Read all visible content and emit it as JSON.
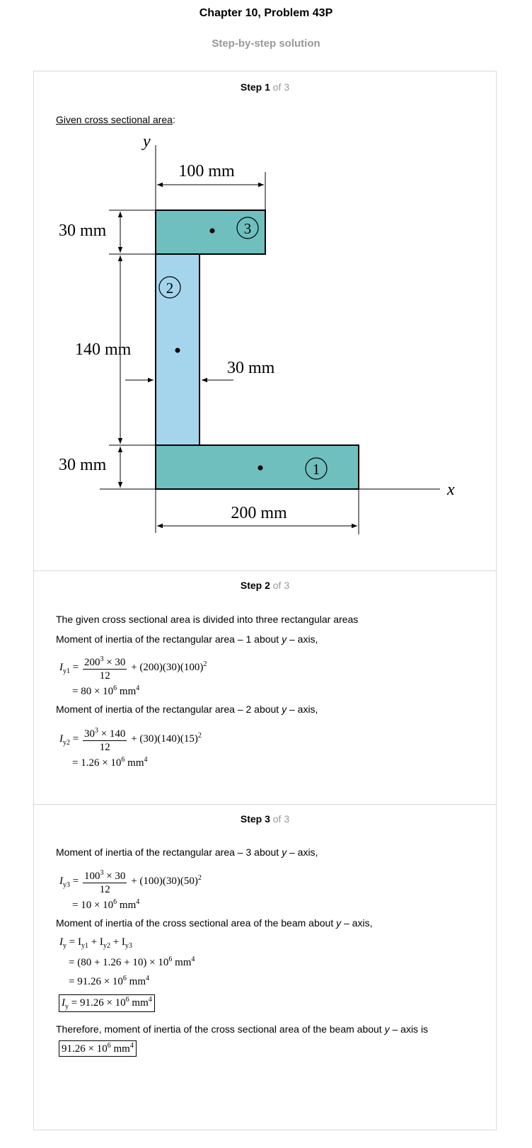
{
  "page": {
    "title": "Chapter 10, Problem 43P",
    "subtitle": "Step-by-step solution"
  },
  "steps": [
    {
      "num": "Step 1",
      "of": " of 3"
    },
    {
      "num": "Step 2",
      "of": " of 3"
    },
    {
      "num": "Step 3",
      "of": " of 3"
    }
  ],
  "step1": {
    "given_label": "Given cross sectional area",
    "given_colon": ":",
    "figure": {
      "axis_y": "y",
      "axis_x": "x",
      "dim_top": "100 mm",
      "dim_top_thick": "30 mm",
      "dim_web_height": "140 mm",
      "dim_web_thick": "30 mm",
      "dim_bottom_thick": "30 mm",
      "dim_bottom": "200 mm",
      "label_1": "1",
      "label_2": "2",
      "label_3": "3",
      "color_flange": "#6fbfbf",
      "color_web": "#a5d5ec"
    }
  },
  "step2": {
    "line1": "The given cross sectional area is divided into three rectangular areas",
    "line2_a": "Moment of inertia of the rectangular area – 1 about ",
    "line2_b": "y",
    "line2_c": " – axis,",
    "eq1_lhs": "I",
    "eq1_sub": "y1",
    "eq1_num": "200",
    "eq1_num_exp": "3",
    "eq1_num_rest": " × 30",
    "eq1_den": "12",
    "eq1_rest": "+ (200)(30)(100)",
    "eq1_rest_exp": "2",
    "eq1_res": "= 80 × 10",
    "eq1_res_exp": "6",
    "eq1_unit": " mm",
    "eq1_unit_exp": "4",
    "line3_a": "Moment of inertia of the rectangular area – 2 about ",
    "line3_b": "y",
    "line3_c": " – axis,",
    "eq2_sub": "y2",
    "eq2_num": "30",
    "eq2_num_exp": "3",
    "eq2_num_rest": " × 140",
    "eq2_den": "12",
    "eq2_rest": "+ (30)(140)(15)",
    "eq2_rest_exp": "2",
    "eq2_res": "= 1.26 × 10",
    "eq2_res_exp": "6",
    "eq2_unit": " mm",
    "eq2_unit_exp": "4"
  },
  "step3": {
    "line1_a": "Moment of inertia of the rectangular area – 3 about ",
    "line1_b": "y",
    "line1_c": " – axis,",
    "eq3_sub": "y3",
    "eq3_num": "100",
    "eq3_num_exp": "3",
    "eq3_num_rest": " × 30",
    "eq3_den": "12",
    "eq3_rest": "+ (100)(30)(50)",
    "eq3_rest_exp": "2",
    "eq3_res": "= 10 × 10",
    "eq3_res_exp": "6",
    "eq3_unit": " mm",
    "eq3_unit_exp": "4",
    "line2_a": "Moment of inertia of the cross sectional area of the beam about ",
    "line2_b": "y",
    "line2_c": " – axis,",
    "sum_eq": "= I",
    "sum_1": "y1",
    "sum_plus": " + I",
    "sum_2": "y2",
    "sum_3": "y3",
    "sum_line2": "= (80 + 1.26 + 10) × 10",
    "sum_line2_exp": "6",
    "sum_line3": "= 91.26 × 10",
    "sum_line3_exp": "6",
    "boxed_eq": " = 91.26 × 10",
    "boxed_exp": "6",
    "final_a": "Therefore, moment of inertia of the cross sectional area of the beam about ",
    "final_b": "y",
    "final_c": " – axis is",
    "final_val": "91.26 × 10",
    "final_exp": "6",
    "unit": " mm",
    "unit_exp": "4"
  }
}
